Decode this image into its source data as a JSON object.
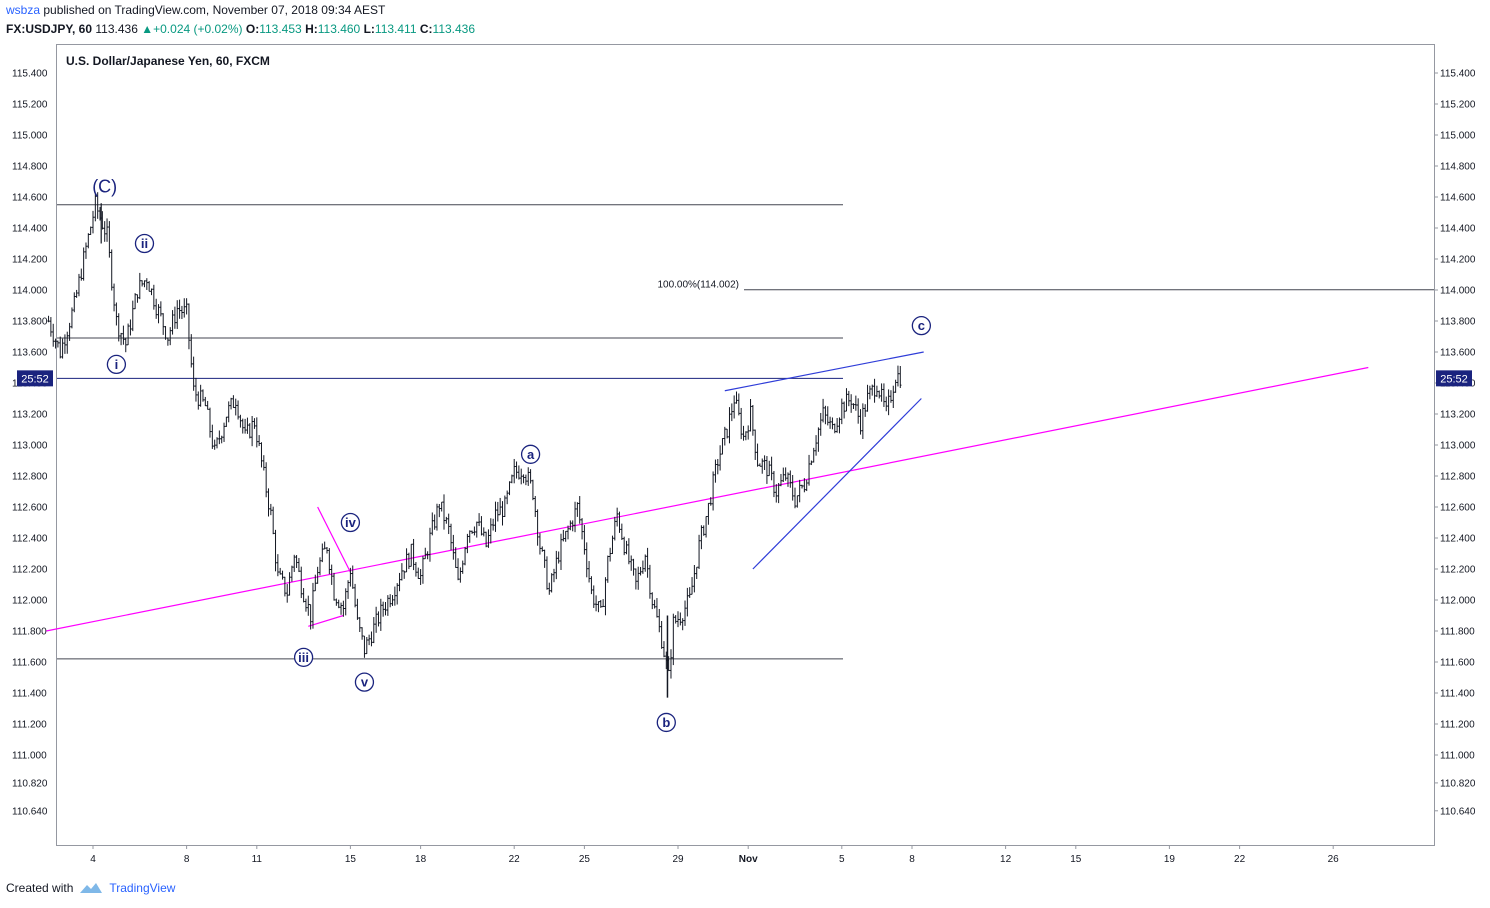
{
  "header": {
    "publisher": "wsbza",
    "published_text": "published on TradingView.com, November 07, 2018 09:34 AEST",
    "symbol": "FX:USDJPY, 60",
    "last": "113.436",
    "change": "+0.024 (+0.02%)",
    "o_label": "O:",
    "o": "113.453",
    "h_label": "H:",
    "h": "113.460",
    "l_label": "L:",
    "l": "113.411",
    "c_label": "C:",
    "c": "113.436"
  },
  "footer": {
    "created_with": "Created with",
    "brand": "TradingView"
  },
  "chart_data": {
    "type": "candlestick",
    "title": "U.S. Dollar/Japanese Yen, 60, FXCM",
    "ylim": [
      110.5,
      115.55
    ],
    "y_ticks": [
      "115.400",
      "115.200",
      "115.000",
      "114.800",
      "114.600",
      "114.400",
      "114.200",
      "114.000",
      "113.800",
      "113.600",
      "113.400",
      "113.200",
      "113.000",
      "112.800",
      "112.600",
      "112.400",
      "112.200",
      "112.000",
      "111.800",
      "111.600",
      "111.400",
      "111.200",
      "111.000",
      "110.820",
      "110.640"
    ],
    "x_ticks": [
      {
        "label": "4",
        "d": 4
      },
      {
        "label": "8",
        "d": 8
      },
      {
        "label": "11",
        "d": 11
      },
      {
        "label": "15",
        "d": 15
      },
      {
        "label": "18",
        "d": 18
      },
      {
        "label": "22",
        "d": 22
      },
      {
        "label": "25",
        "d": 25
      },
      {
        "label": "29",
        "d": 29
      },
      {
        "label": "Nov",
        "d": 32
      },
      {
        "label": "5",
        "d": 36
      },
      {
        "label": "8",
        "d": 39
      },
      {
        "label": "12",
        "d": 43
      },
      {
        "label": "15",
        "d": 46
      },
      {
        "label": "19",
        "d": 50
      },
      {
        "label": "22",
        "d": 53
      },
      {
        "label": "26",
        "d": 57
      }
    ],
    "countdown_label": "25:52",
    "fib_label": "100.00%(114.002)",
    "price_path": [
      {
        "d": 2.1,
        "p": 113.8
      },
      {
        "d": 2.6,
        "p": 113.6
      },
      {
        "d": 3.2,
        "p": 113.9
      },
      {
        "d": 3.6,
        "p": 114.2
      },
      {
        "d": 4.1,
        "p": 114.55
      },
      {
        "d": 4.6,
        "p": 114.35
      },
      {
        "d": 5.0,
        "p": 113.8
      },
      {
        "d": 5.4,
        "p": 113.65
      },
      {
        "d": 5.9,
        "p": 114.0
      },
      {
        "d": 6.3,
        "p": 114.08
      },
      {
        "d": 6.7,
        "p": 113.9
      },
      {
        "d": 7.2,
        "p": 113.7
      },
      {
        "d": 7.6,
        "p": 113.88
      },
      {
        "d": 8.0,
        "p": 113.85
      },
      {
        "d": 8.3,
        "p": 113.35
      },
      {
        "d": 8.8,
        "p": 113.25
      },
      {
        "d": 9.2,
        "p": 112.95
      },
      {
        "d": 9.7,
        "p": 113.2
      },
      {
        "d": 10.1,
        "p": 113.3
      },
      {
        "d": 10.5,
        "p": 113.05
      },
      {
        "d": 10.9,
        "p": 113.15
      },
      {
        "d": 11.3,
        "p": 112.8
      },
      {
        "d": 11.6,
        "p": 112.55
      },
      {
        "d": 11.9,
        "p": 112.15
      },
      {
        "d": 12.3,
        "p": 112.05
      },
      {
        "d": 12.6,
        "p": 112.3
      },
      {
        "d": 12.9,
        "p": 112.1
      },
      {
        "d": 13.3,
        "p": 111.9
      },
      {
        "d": 13.6,
        "p": 112.2
      },
      {
        "d": 14.0,
        "p": 112.35
      },
      {
        "d": 14.3,
        "p": 112.05
      },
      {
        "d": 14.7,
        "p": 111.95
      },
      {
        "d": 15.0,
        "p": 112.2
      },
      {
        "d": 15.3,
        "p": 111.85
      },
      {
        "d": 15.6,
        "p": 111.68
      },
      {
        "d": 16.0,
        "p": 111.82
      },
      {
        "d": 16.4,
        "p": 111.95
      },
      {
        "d": 16.8,
        "p": 112.05
      },
      {
        "d": 17.2,
        "p": 112.2
      },
      {
        "d": 17.6,
        "p": 112.3
      },
      {
        "d": 18.0,
        "p": 112.15
      },
      {
        "d": 18.4,
        "p": 112.4
      },
      {
        "d": 18.8,
        "p": 112.62
      },
      {
        "d": 19.2,
        "p": 112.45
      },
      {
        "d": 19.6,
        "p": 112.1
      },
      {
        "d": 20.0,
        "p": 112.45
      },
      {
        "d": 20.4,
        "p": 112.5
      },
      {
        "d": 20.8,
        "p": 112.35
      },
      {
        "d": 21.2,
        "p": 112.55
      },
      {
        "d": 21.6,
        "p": 112.6
      },
      {
        "d": 22.0,
        "p": 112.82
      },
      {
        "d": 22.4,
        "p": 112.85
      },
      {
        "d": 22.8,
        "p": 112.7
      },
      {
        "d": 23.1,
        "p": 112.35
      },
      {
        "d": 23.5,
        "p": 112.05
      },
      {
        "d": 23.9,
        "p": 112.3
      },
      {
        "d": 24.3,
        "p": 112.45
      },
      {
        "d": 24.7,
        "p": 112.6
      },
      {
        "d": 25.0,
        "p": 112.35
      },
      {
        "d": 25.3,
        "p": 112.05
      },
      {
        "d": 25.7,
        "p": 111.9
      },
      {
        "d": 26.0,
        "p": 112.25
      },
      {
        "d": 26.4,
        "p": 112.55
      },
      {
        "d": 26.8,
        "p": 112.3
      },
      {
        "d": 27.2,
        "p": 112.1
      },
      {
        "d": 27.6,
        "p": 112.3
      },
      {
        "d": 27.9,
        "p": 112.0
      },
      {
        "d": 28.3,
        "p": 111.75
      },
      {
        "d": 28.6,
        "p": 111.5
      },
      {
        "d": 28.8,
        "p": 111.85
      },
      {
        "d": 29.1,
        "p": 111.9
      },
      {
        "d": 29.5,
        "p": 112.0
      },
      {
        "d": 29.9,
        "p": 112.35
      },
      {
        "d": 30.3,
        "p": 112.6
      },
      {
        "d": 30.7,
        "p": 112.9
      },
      {
        "d": 31.1,
        "p": 113.1
      },
      {
        "d": 31.4,
        "p": 113.3
      },
      {
        "d": 31.8,
        "p": 113.05
      },
      {
        "d": 32.1,
        "p": 113.2
      },
      {
        "d": 32.4,
        "p": 112.9
      },
      {
        "d": 32.8,
        "p": 112.85
      },
      {
        "d": 33.2,
        "p": 112.7
      },
      {
        "d": 33.6,
        "p": 112.8
      },
      {
        "d": 34.0,
        "p": 112.65
      },
      {
        "d": 34.4,
        "p": 112.75
      },
      {
        "d": 34.8,
        "p": 113.0
      },
      {
        "d": 35.2,
        "p": 113.2
      },
      {
        "d": 35.6,
        "p": 113.1
      },
      {
        "d": 36.0,
        "p": 113.25
      },
      {
        "d": 36.4,
        "p": 113.3
      },
      {
        "d": 36.8,
        "p": 113.15
      },
      {
        "d": 37.1,
        "p": 113.3
      },
      {
        "d": 37.5,
        "p": 113.4
      },
      {
        "d": 37.9,
        "p": 113.2
      },
      {
        "d": 38.3,
        "p": 113.45
      },
      {
        "d": 38.6,
        "p": 113.44
      }
    ],
    "horizontal_levels": [
      114.55,
      113.69,
      113.43,
      111.62
    ],
    "fib_level": 114.002,
    "trendlines": [
      {
        "color": "#ff00ff",
        "from": {
          "d": 2.0,
          "p": 111.8
        },
        "to": {
          "d": 58.5,
          "p": 113.5
        }
      },
      {
        "color": "#ff00ff",
        "from": {
          "d": 13.6,
          "p": 112.6
        },
        "to": {
          "d": 15.0,
          "p": 112.18
        }
      },
      {
        "color": "#ff00ff",
        "from": {
          "d": 13.2,
          "p": 111.83
        },
        "to": {
          "d": 14.7,
          "p": 111.9
        }
      },
      {
        "color": "#2f3dd8",
        "from": {
          "d": 31.0,
          "p": 113.35
        },
        "to": {
          "d": 39.5,
          "p": 113.6
        }
      },
      {
        "color": "#2f3dd8",
        "from": {
          "d": 32.2,
          "p": 112.2
        },
        "to": {
          "d": 39.4,
          "p": 113.3
        }
      }
    ],
    "wave_labels": [
      {
        "text": "(C)",
        "d": 4.5,
        "p": 114.66,
        "plain": true
      },
      {
        "text": "ii",
        "d": 6.2,
        "p": 114.3
      },
      {
        "text": "i",
        "d": 5.0,
        "p": 113.52
      },
      {
        "text": "iv",
        "d": 15.0,
        "p": 112.5
      },
      {
        "text": "iii",
        "d": 13.0,
        "p": 111.63
      },
      {
        "text": "v",
        "d": 15.6,
        "p": 111.47
      },
      {
        "text": "a",
        "d": 22.7,
        "p": 112.94
      },
      {
        "text": "b",
        "d": 28.5,
        "p": 111.21
      },
      {
        "text": "c",
        "d": 39.4,
        "p": 113.77
      }
    ]
  }
}
